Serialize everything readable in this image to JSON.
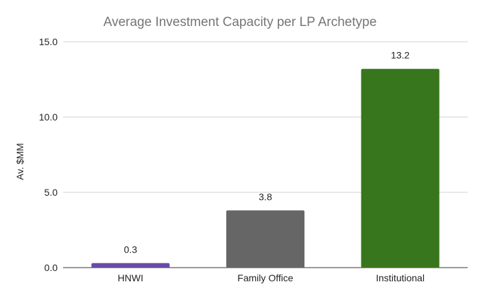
{
  "chart_data": {
    "type": "bar",
    "title": "Average Investment Capacity per LP Archetype",
    "xlabel": "",
    "ylabel": "Av. $MM",
    "categories": [
      "HNWI",
      "Family Office",
      "Institutional"
    ],
    "values": [
      0.3,
      3.8,
      13.2
    ],
    "data_labels": [
      "0.3",
      "3.8",
      "13.2"
    ],
    "colors": [
      "#6a4aa8",
      "#666666",
      "#38761d"
    ],
    "ylim": [
      0,
      15
    ],
    "yticks": [
      0,
      5,
      10,
      15
    ],
    "ytick_labels": [
      "0.0",
      "5.0",
      "10.0",
      "15.0"
    ],
    "grid": true,
    "legend": "none"
  }
}
